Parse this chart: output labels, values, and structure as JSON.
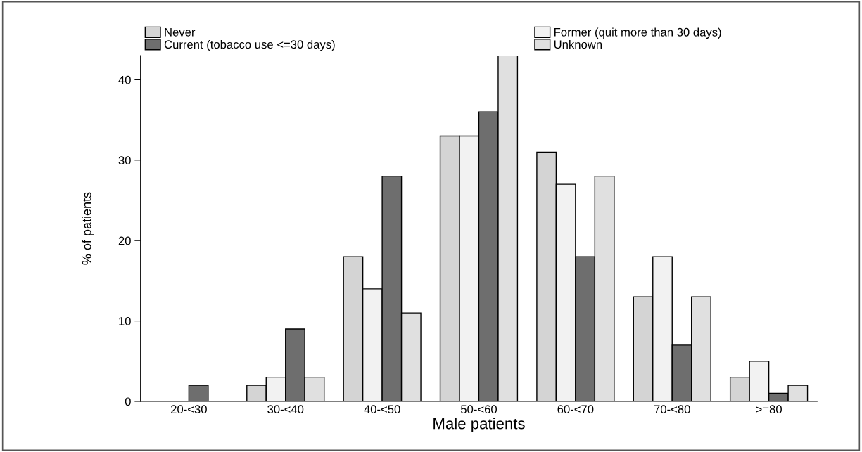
{
  "chart_data": {
    "type": "bar",
    "xlabel": "Male patients",
    "ylabel": "% of patients",
    "categories": [
      "20-<30",
      "30-<40",
      "40-<50",
      "50-<60",
      "60-<70",
      "70-<80",
      ">=80"
    ],
    "series": [
      {
        "name": "Never",
        "color": "#d4d4d4",
        "values": [
          0,
          2,
          18,
          33,
          31,
          13,
          3
        ]
      },
      {
        "name": "Former (quit more than 30 days)",
        "color": "#f2f2f2",
        "values": [
          0,
          3,
          14,
          33,
          27,
          18,
          5
        ]
      },
      {
        "name": "Current (tobacco use <=30 days)",
        "color": "#6e6e6e",
        "values": [
          2,
          9,
          28,
          36,
          18,
          7,
          1
        ]
      },
      {
        "name": "Unknown",
        "color": "#e0e0e0",
        "values": [
          0,
          3,
          11,
          43,
          28,
          13,
          2
        ]
      }
    ],
    "ylim": [
      0,
      43
    ],
    "yticks": [
      0,
      10,
      20,
      30,
      40
    ],
    "grid": false,
    "legend": "top"
  }
}
